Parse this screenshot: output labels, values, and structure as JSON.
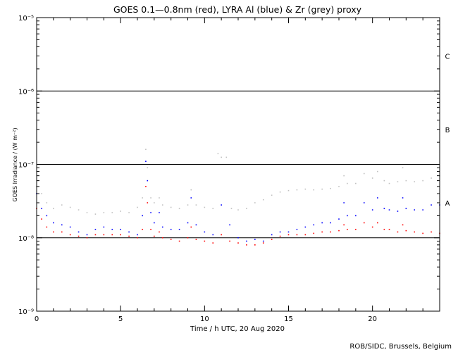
{
  "chart_data": {
    "type": "scatter",
    "title": "GOES 0.1—0.8nm (red), LYRA Al (blue) & Zr (grey) proxy",
    "xlabel": "Time / h UTC, 20 Aug 2020",
    "ylabel": "GOES Irradiance / (W m⁻²)",
    "xlim": [
      0,
      24
    ],
    "ylim": [
      1e-09,
      1e-05
    ],
    "yscale": "log",
    "x_ticks": [
      {
        "value": 0,
        "label": "0"
      },
      {
        "value": 5,
        "label": "5"
      },
      {
        "value": 10,
        "label": "10"
      },
      {
        "value": 15,
        "label": "15"
      },
      {
        "value": 20,
        "label": "20"
      }
    ],
    "y_ticks": [
      {
        "value": 1e-09,
        "label": "10⁻⁹"
      },
      {
        "value": 1e-08,
        "label": "10⁻⁸"
      },
      {
        "value": 1e-07,
        "label": "10⁻⁷"
      },
      {
        "value": 1e-06,
        "label": "10⁻⁶"
      },
      {
        "value": 1e-05,
        "label": "10⁻⁵"
      }
    ],
    "flare_class_lines": [
      1e-08,
      1e-07,
      1e-06
    ],
    "flare_class_labels": [
      {
        "label": "A",
        "value": 3e-08
      },
      {
        "label": "B",
        "value": 3e-07
      },
      {
        "label": "C",
        "value": 3e-06
      }
    ],
    "series": [
      {
        "color": "#c0c0c0",
        "x": [
          0.0,
          0.3,
          0.6,
          1.0,
          1.5,
          2.0,
          2.5,
          3.0,
          3.5,
          4.0,
          4.5,
          5.0,
          5.5,
          6.0,
          6.3,
          6.5,
          6.6,
          6.8,
          7.0,
          7.3,
          7.5,
          8.0,
          8.5,
          9.0,
          9.2,
          9.5,
          10.0,
          10.5,
          10.8,
          11.0,
          11.3,
          11.6,
          12.0,
          12.5,
          13.0,
          13.5,
          14.0,
          14.5,
          15.0,
          15.5,
          16.0,
          16.5,
          17.0,
          17.5,
          18.0,
          18.3,
          18.5,
          19.0,
          19.5,
          20.0,
          20.3,
          20.7,
          21.0,
          21.5,
          21.8,
          22.0,
          22.5,
          23.0,
          23.5,
          24.0
        ],
        "y": [
          5e-08,
          4e-08,
          3e-08,
          2.5e-08,
          2.8e-08,
          2.6e-08,
          2.4e-08,
          2.2e-08,
          2.1e-08,
          2.2e-08,
          2.2e-08,
          2.3e-08,
          2.2e-08,
          2.6e-08,
          3.5e-08,
          1.6e-07,
          9e-08,
          3.5e-08,
          3e-08,
          3.5e-08,
          2.8e-08,
          2.6e-08,
          2.5e-08,
          2.8e-08,
          4.5e-08,
          2.8e-08,
          2.6e-08,
          2.5e-08,
          1.4e-07,
          1.25e-07,
          1.25e-07,
          2.5e-08,
          2.4e-08,
          2.5e-08,
          3e-08,
          3.3e-08,
          3.8e-08,
          4.2e-08,
          4.4e-08,
          4.5e-08,
          4.6e-08,
          4.5e-08,
          4.6e-08,
          4.7e-08,
          5e-08,
          7e-08,
          5.5e-08,
          5.5e-08,
          7.5e-08,
          6.5e-08,
          8e-08,
          6e-08,
          5.5e-08,
          5.8e-08,
          9e-08,
          6e-08,
          5.8e-08,
          6e-08,
          6.5e-08,
          7e-08
        ]
      },
      {
        "color": "#0000ff",
        "x": [
          0.0,
          0.3,
          0.6,
          1.0,
          1.5,
          2.0,
          2.5,
          3.0,
          3.5,
          4.0,
          4.5,
          5.0,
          5.5,
          6.0,
          6.3,
          6.5,
          6.6,
          6.8,
          7.0,
          7.3,
          7.5,
          8.0,
          8.5,
          9.0,
          9.2,
          9.5,
          10.0,
          10.5,
          11.0,
          11.5,
          12.0,
          12.5,
          13.0,
          13.5,
          14.0,
          14.5,
          15.0,
          15.5,
          16.0,
          16.5,
          17.0,
          17.5,
          18.0,
          18.3,
          18.5,
          19.0,
          19.5,
          20.0,
          20.3,
          20.7,
          21.0,
          21.5,
          21.8,
          22.0,
          22.5,
          23.0,
          23.5,
          24.0
        ],
        "y": [
          4e-08,
          2.5e-08,
          2e-08,
          1.6e-08,
          1.5e-08,
          1.4e-08,
          1.2e-08,
          1.1e-08,
          1.3e-08,
          1.4e-08,
          1.3e-08,
          1.3e-08,
          1.2e-08,
          1.1e-08,
          2e-08,
          1.1e-07,
          6e-08,
          2.2e-08,
          1.6e-08,
          2.2e-08,
          1.4e-08,
          1.3e-08,
          1.3e-08,
          1.6e-08,
          3.5e-08,
          1.5e-08,
          1.2e-08,
          1.1e-08,
          2.8e-08,
          1.5e-08,
          1e-08,
          9e-09,
          9.5e-09,
          9e-09,
          1.1e-08,
          1.2e-08,
          1.2e-08,
          1.3e-08,
          1.4e-08,
          1.5e-08,
          1.6e-08,
          1.6e-08,
          1.8e-08,
          3e-08,
          2e-08,
          2e-08,
          3e-08,
          2.4e-08,
          3.5e-08,
          2.5e-08,
          2.4e-08,
          2.3e-08,
          3.5e-08,
          2.5e-08,
          2.4e-08,
          2.4e-08,
          2.8e-08,
          2.8e-08
        ]
      },
      {
        "color": "#ff0000",
        "x": [
          0.0,
          0.3,
          0.6,
          1.0,
          1.5,
          2.0,
          2.5,
          3.0,
          3.5,
          4.0,
          4.5,
          5.0,
          5.5,
          6.0,
          6.3,
          6.5,
          6.6,
          6.8,
          7.0,
          7.3,
          7.5,
          8.0,
          8.5,
          9.0,
          9.2,
          9.5,
          10.0,
          10.5,
          11.0,
          11.5,
          12.0,
          12.5,
          13.0,
          13.5,
          14.0,
          14.5,
          15.0,
          15.5,
          16.0,
          16.5,
          17.0,
          17.5,
          18.0,
          18.3,
          18.5,
          19.0,
          19.5,
          20.0,
          20.3,
          20.7,
          21.0,
          21.5,
          21.8,
          22.0,
          22.5,
          23.0,
          23.5,
          24.0
        ],
        "y": [
          2.5e-08,
          1.8e-08,
          1.4e-08,
          1.2e-08,
          1.2e-08,
          1.1e-08,
          1.05e-08,
          1e-08,
          1.1e-08,
          1.1e-08,
          1.1e-08,
          1.1e-08,
          1.05e-08,
          1e-08,
          1.3e-08,
          5e-08,
          3e-08,
          1.3e-08,
          1.05e-08,
          1.2e-08,
          1e-08,
          9.5e-09,
          9e-09,
          1e-08,
          1.4e-08,
          9.5e-09,
          9e-09,
          8.5e-09,
          1.1e-08,
          9e-09,
          8.5e-09,
          8e-09,
          8e-09,
          8.5e-09,
          9.5e-09,
          1.05e-08,
          1.1e-08,
          1.1e-08,
          1.1e-08,
          1.15e-08,
          1.2e-08,
          1.2e-08,
          1.25e-08,
          1.5e-08,
          1.3e-08,
          1.3e-08,
          1.6e-08,
          1.4e-08,
          1.6e-08,
          1.3e-08,
          1.3e-08,
          1.2e-08,
          1.5e-08,
          1.25e-08,
          1.2e-08,
          1.15e-08,
          1.2e-08,
          1.15e-08
        ]
      }
    ],
    "credit": "ROB/SIDC, Brussels, Belgium"
  }
}
